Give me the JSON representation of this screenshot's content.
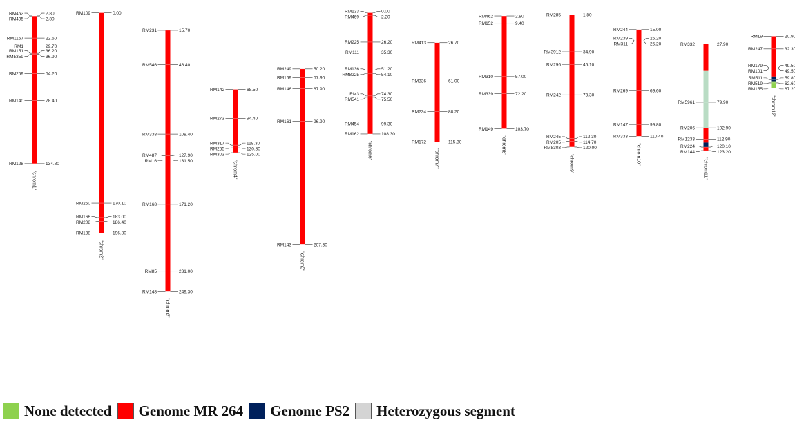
{
  "colors": {
    "MR264": "#ff0000",
    "PS2": "#00205b",
    "hetero": "#b9dcc4",
    "none": "#8ed14e"
  },
  "chromosomes": [
    {
      "label": "\"chrom1\"",
      "markers": [
        [
          "RM462",
          "2.80"
        ],
        [
          "RM495",
          "2.80"
        ],
        [
          "RM1167",
          "22.60"
        ],
        [
          "RM1",
          "29.70"
        ],
        [
          "RM151",
          "36.20"
        ],
        [
          "RM5359",
          "36.90"
        ],
        [
          "RM259",
          "54.20"
        ],
        [
          "RM140",
          "78.40"
        ],
        [
          "RM128",
          "134.80"
        ]
      ],
      "segments": [
        [
          "MR264",
          "2.80",
          "134.80"
        ]
      ]
    },
    {
      "label": "\"chrom2\"",
      "markers": [
        [
          "RM109",
          "0.00"
        ],
        [
          "RM250",
          "170.10"
        ],
        [
          "RM166",
          "183.00"
        ],
        [
          "RM208",
          "186.40"
        ],
        [
          "RM138",
          "196.80"
        ]
      ],
      "segments": [
        [
          "MR264",
          "0.00",
          "196.80"
        ]
      ]
    },
    {
      "label": "\"chrom3\"",
      "markers": [
        [
          "RM231",
          "15.70"
        ],
        [
          "RM546",
          "46.40"
        ],
        [
          "RM338",
          "108.40"
        ],
        [
          "RM487",
          "127.90"
        ],
        [
          "RM16",
          "131.50"
        ],
        [
          "RM168",
          "171.20"
        ],
        [
          "RM85",
          "231.00"
        ],
        [
          "RM148",
          "249.30"
        ]
      ],
      "segments": [
        [
          "MR264",
          "15.70",
          "249.30"
        ]
      ]
    },
    {
      "label": "\"chrom4\"",
      "markers": [
        [
          "RM142",
          "68.50"
        ],
        [
          "RM273",
          "94.40"
        ],
        [
          "RM317",
          "118.30"
        ],
        [
          "RM255",
          "120.80"
        ],
        [
          "RM303",
          "125.00"
        ]
      ],
      "segments": [
        [
          "MR264",
          "68.50",
          "125.00"
        ]
      ]
    },
    {
      "label": "\"chrom5\"",
      "markers": [
        [
          "RM249",
          "50.20"
        ],
        [
          "RM169",
          "57.90"
        ],
        [
          "RM146",
          "67.90"
        ],
        [
          "RM161",
          "96.90"
        ],
        [
          "RM143",
          "207.30"
        ]
      ],
      "segments": [
        [
          "MR264",
          "50.20",
          "207.30"
        ]
      ]
    },
    {
      "label": "\"chrom6\"",
      "markers": [
        [
          "RM133",
          "0.00"
        ],
        [
          "RM469",
          "2.20"
        ],
        [
          "RM225",
          "26.20"
        ],
        [
          "RM111",
          "35.30"
        ],
        [
          "RM136",
          "51.20"
        ],
        [
          "RM8225",
          "54.10"
        ],
        [
          "RM3",
          "74.30"
        ],
        [
          "RM541",
          "75.50"
        ],
        [
          "RM454",
          "99.30"
        ],
        [
          "RM162",
          "108.30"
        ]
      ],
      "segments": [
        [
          "MR264",
          "0.00",
          "108.30"
        ]
      ]
    },
    {
      "label": "\"chrom7\"",
      "markers": [
        [
          "RM413",
          "26.70"
        ],
        [
          "RM336",
          "61.00"
        ],
        [
          "RM234",
          "88.20"
        ],
        [
          "RM172",
          "115.30"
        ]
      ],
      "segments": [
        [
          "MR264",
          "26.70",
          "115.30"
        ]
      ]
    },
    {
      "label": "\"chrom8\"",
      "markers": [
        [
          "RM462",
          "2.80"
        ],
        [
          "RM152",
          "9.40"
        ],
        [
          "RM310",
          "57.00"
        ],
        [
          "RM339",
          "72.20"
        ],
        [
          "RM149",
          "103.70"
        ]
      ],
      "segments": [
        [
          "MR264",
          "2.80",
          "103.70"
        ]
      ]
    },
    {
      "label": "\"chrom9\"",
      "markers": [
        [
          "RM285",
          "1.80"
        ],
        [
          "RM3912",
          "34.90"
        ],
        [
          "RM296",
          "46.10"
        ],
        [
          "RM242",
          "73.30"
        ],
        [
          "RM245",
          "112.30"
        ],
        [
          "RM205",
          "114.70"
        ],
        [
          "RM8303",
          "120.00"
        ]
      ],
      "segments": [
        [
          "MR264",
          "1.80",
          "120.00"
        ]
      ]
    },
    {
      "label": "\"chrom10\"",
      "markers": [
        [
          "RM244",
          "15.00"
        ],
        [
          "RM239",
          "25.20"
        ],
        [
          "RM311",
          "25.20"
        ],
        [
          "RM269",
          "69.60"
        ],
        [
          "RM147",
          "99.80"
        ],
        [
          "RM333",
          "110.40"
        ]
      ],
      "segments": [
        [
          "MR264",
          "15.00",
          "110.40"
        ]
      ]
    },
    {
      "label": "\"chrom11\"",
      "markers": [
        [
          "RM332",
          "27.90"
        ],
        [
          "RM5961",
          "79.90"
        ],
        [
          "RM206",
          "102.90"
        ],
        [
          "RM1233",
          "112.90"
        ],
        [
          "RM224",
          "120.10"
        ],
        [
          "RM144",
          "123.20"
        ]
      ],
      "segments": [
        [
          "MR264",
          "27.90",
          "52.00"
        ],
        [
          "hetero",
          "52.00",
          "102.90"
        ],
        [
          "MR264",
          "102.90",
          "116.00"
        ],
        [
          "PS2",
          "116.00",
          "120.10"
        ],
        [
          "MR264",
          "120.10",
          "123.20"
        ]
      ]
    },
    {
      "label": "\"chrom12\"",
      "markers": [
        [
          "RM19",
          "20.90"
        ],
        [
          "RM247",
          "32.30"
        ],
        [
          "RM179",
          "49.50"
        ],
        [
          "RM101",
          "49.50"
        ],
        [
          "RM511",
          "59.80"
        ],
        [
          "RM519",
          "62.60"
        ],
        [
          "RM155",
          "67.20"
        ]
      ],
      "segments": [
        [
          "MR264",
          "20.90",
          "57.00"
        ],
        [
          "PS2",
          "57.00",
          "61.80"
        ],
        [
          "none",
          "61.80",
          "67.20"
        ]
      ]
    }
  ],
  "legend": [
    {
      "key": "none",
      "label": "None detected"
    },
    {
      "key": "MR264",
      "label": "Genome MR 264"
    },
    {
      "key": "PS2",
      "label": "Genome PS2"
    },
    {
      "key": "hetero",
      "label": "Heterozygous segment"
    }
  ],
  "legend_colors": {
    "hetero": "#d4d4d4"
  }
}
